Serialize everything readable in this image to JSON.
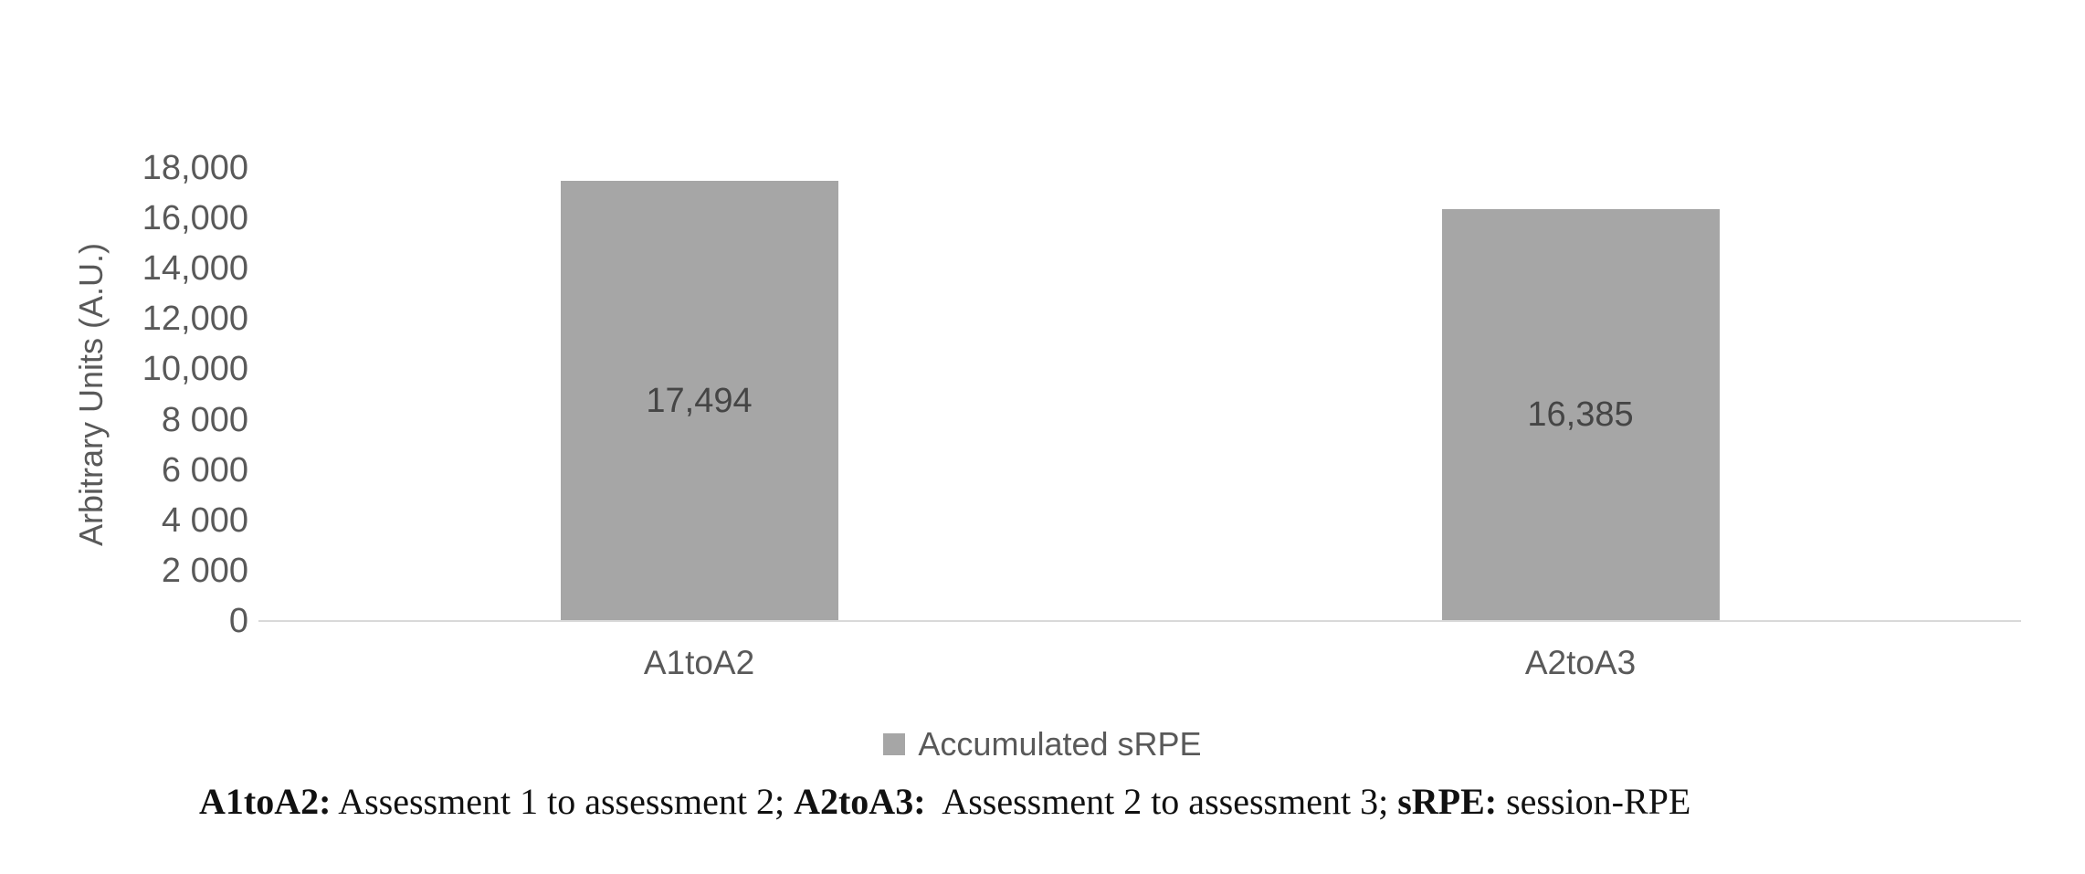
{
  "chart_data": {
    "type": "bar",
    "title": "",
    "categories": [
      "A1toA2",
      "A2toA3"
    ],
    "values": [
      17494,
      16385
    ],
    "value_labels": [
      "17,494",
      "16,385"
    ],
    "series": [
      {
        "name": "Accumulated sRPE",
        "values": [
          17494,
          16385
        ]
      }
    ],
    "xlabel": "",
    "ylabel": "Arbitrary Units (A.U.)",
    "ylim": [
      0,
      18000
    ],
    "ytick_interval": 2000,
    "ytick_labels": [
      "0",
      "2 000",
      "4 000",
      "6 000",
      "8 000",
      "10,000",
      "12,000",
      "14,000",
      "16,000",
      "18,000"
    ],
    "grid": false,
    "legend_position": "bottom",
    "bar_color": "#a6a6a6",
    "axis_line_color": "#d9d9d9",
    "tick_label_color": "#595959",
    "data_label_color": "#454545"
  },
  "legend": {
    "label": "Accumulated sRPE",
    "swatch_color": "#a6a6a6"
  },
  "caption": {
    "segments": [
      {
        "text": "A1toA2:",
        "bold": true
      },
      {
        "text": " Assessment 1 to assessment 2; ",
        "bold": false
      },
      {
        "text": "A2toA3:",
        "bold": true
      },
      {
        "text": "  Assessment 2 to assessment 3; ",
        "bold": false
      },
      {
        "text": "sRPE:",
        "bold": true
      },
      {
        "text": " session-RPE",
        "bold": false
      }
    ]
  }
}
